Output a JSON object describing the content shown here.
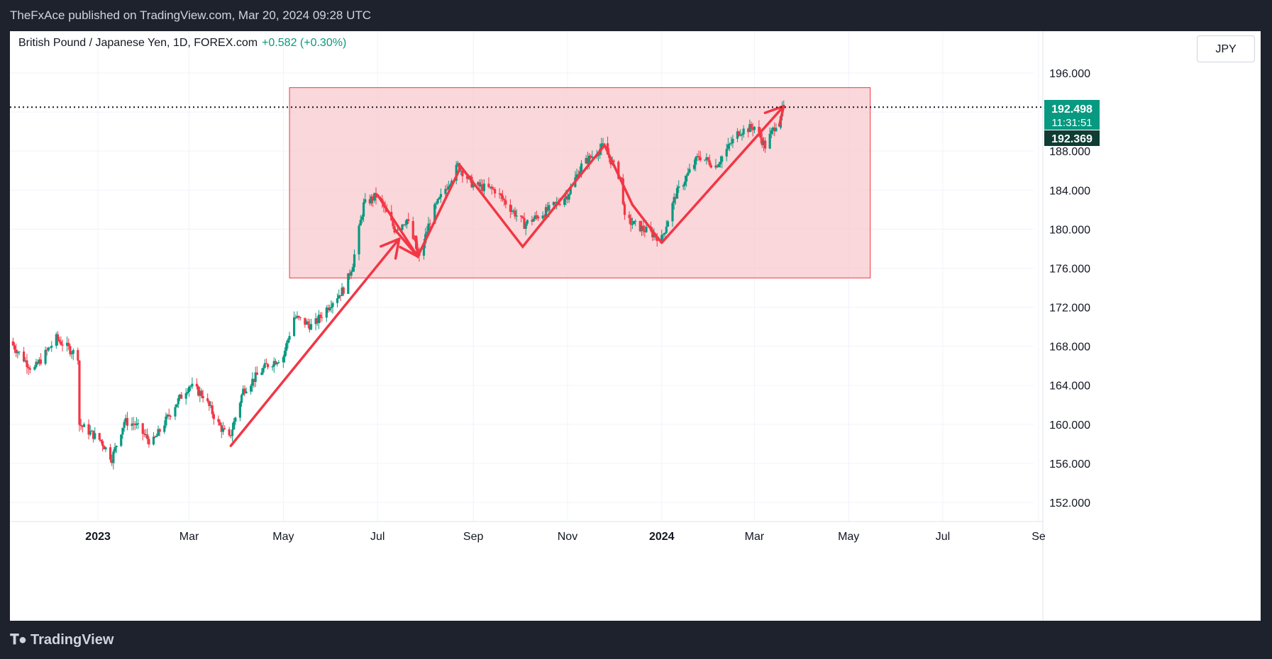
{
  "header": {
    "publisher_line": "TheFxAce published on TradingView.com, Mar 20, 2024 09:28 UTC"
  },
  "symbol_bar": {
    "instrument": "British Pound / Japanese Yen, 1D, FOREX.com",
    "change": "+0.582 (+0.30%)"
  },
  "currency_button": {
    "label": "JPY"
  },
  "price_badges": {
    "last_price": "192.498",
    "countdown": "11:31:51",
    "other_price": "192.369"
  },
  "footer": {
    "brand": "TradingView"
  },
  "chart_data": {
    "type": "candlestick",
    "title": "",
    "y_axis": {
      "range": [
        149,
        197
      ],
      "ticks": [
        152,
        156,
        160,
        164,
        168,
        172,
        176,
        180,
        184,
        188,
        192,
        196
      ],
      "tick_labels": [
        "152.000",
        "156.000",
        "160.000",
        "164.000",
        "168.000",
        "172.000",
        "176.000",
        "180.000",
        "184.000",
        "188.000",
        "192.000",
        "196.000"
      ],
      "position": "right"
    },
    "x_axis": {
      "range": [
        "2022-11-05",
        "2024-09-01"
      ],
      "ticks": [
        {
          "date": "2023-01-01",
          "label": "2023",
          "bold": true
        },
        {
          "date": "2023-03-01",
          "label": "Mar",
          "bold": false
        },
        {
          "date": "2023-05-01",
          "label": "May",
          "bold": false
        },
        {
          "date": "2023-07-01",
          "label": "Jul",
          "bold": false
        },
        {
          "date": "2023-09-01",
          "label": "Sep",
          "bold": false
        },
        {
          "date": "2023-11-01",
          "label": "Nov",
          "bold": false
        },
        {
          "date": "2024-01-01",
          "label": "2024",
          "bold": true
        },
        {
          "date": "2024-03-01",
          "label": "Mar",
          "bold": false
        },
        {
          "date": "2024-05-01",
          "label": "May",
          "bold": false
        },
        {
          "date": "2024-07-01",
          "label": "Jul",
          "bold": false
        },
        {
          "date": "2024-09-01",
          "label": "Se",
          "bold": false
        }
      ]
    },
    "grid": true,
    "colors": {
      "up": "#089981",
      "down": "#f23645",
      "annotation": "#f23645",
      "range_fill": "#f8c9cd",
      "badge_green": "#089981",
      "badge_dark": "#0f3d33"
    },
    "current_price_line": 192.498,
    "price_path": [
      {
        "date": "2022-11-05",
        "price": 168.5
      },
      {
        "date": "2022-11-20",
        "price": 165.5
      },
      {
        "date": "2022-12-05",
        "price": 168.8
      },
      {
        "date": "2022-12-19",
        "price": 167.0
      },
      {
        "date": "2022-12-20",
        "price": 160.0
      },
      {
        "date": "2023-01-03",
        "price": 158.3
      },
      {
        "date": "2023-01-10",
        "price": 156.5
      },
      {
        "date": "2023-01-18",
        "price": 160.3
      },
      {
        "date": "2023-01-25",
        "price": 160.0
      },
      {
        "date": "2023-02-05",
        "price": 158.0
      },
      {
        "date": "2023-02-20",
        "price": 162.0
      },
      {
        "date": "2023-03-01",
        "price": 164.0
      },
      {
        "date": "2023-03-10",
        "price": 163.0
      },
      {
        "date": "2023-03-20",
        "price": 160.0
      },
      {
        "date": "2023-03-27",
        "price": 158.5
      },
      {
        "date": "2023-04-05",
        "price": 163.5
      },
      {
        "date": "2023-04-20",
        "price": 166.0
      },
      {
        "date": "2023-05-01",
        "price": 167.0
      },
      {
        "date": "2023-05-08",
        "price": 171.0
      },
      {
        "date": "2023-05-20",
        "price": 170.0
      },
      {
        "date": "2023-06-01",
        "price": 172.5
      },
      {
        "date": "2023-06-10",
        "price": 174.0
      },
      {
        "date": "2023-06-15",
        "price": 176.5
      },
      {
        "date": "2023-06-22",
        "price": 182.5
      },
      {
        "date": "2023-07-01",
        "price": 183.5
      },
      {
        "date": "2023-07-12",
        "price": 180.0
      },
      {
        "date": "2023-07-20",
        "price": 181.0
      },
      {
        "date": "2023-07-28",
        "price": 177.0
      },
      {
        "date": "2023-08-05",
        "price": 181.5
      },
      {
        "date": "2023-08-22",
        "price": 186.5
      },
      {
        "date": "2023-09-01",
        "price": 184.5
      },
      {
        "date": "2023-09-15",
        "price": 184.0
      },
      {
        "date": "2023-10-04",
        "price": 180.5
      },
      {
        "date": "2023-10-20",
        "price": 182.0
      },
      {
        "date": "2023-11-01",
        "price": 183.5
      },
      {
        "date": "2023-11-10",
        "price": 186.5
      },
      {
        "date": "2023-11-24",
        "price": 188.5
      },
      {
        "date": "2023-12-06",
        "price": 185.0
      },
      {
        "date": "2023-12-08",
        "price": 181.0
      },
      {
        "date": "2023-12-20",
        "price": 180.0
      },
      {
        "date": "2024-01-01",
        "price": 179.0
      },
      {
        "date": "2024-01-10",
        "price": 183.5
      },
      {
        "date": "2024-01-25",
        "price": 187.5
      },
      {
        "date": "2024-02-05",
        "price": 186.5
      },
      {
        "date": "2024-02-20",
        "price": 190.0
      },
      {
        "date": "2024-03-01",
        "price": 190.5
      },
      {
        "date": "2024-03-08",
        "price": 188.5
      },
      {
        "date": "2024-03-20",
        "price": 192.5
      }
    ],
    "annotations": {
      "range_box": {
        "x_start": "2023-05-05",
        "x_end": "2024-05-15",
        "y_low": 175.0,
        "y_high": 194.5
      },
      "zigzag_path": [
        {
          "date": "2023-07-12",
          "price": 180.0
        },
        {
          "date": "2023-07-27",
          "price": 177.2
        },
        {
          "date": "2023-08-24",
          "price": 186.4
        },
        {
          "date": "2023-10-03",
          "price": 178.2
        },
        {
          "date": "2023-11-25",
          "price": 188.6
        },
        {
          "date": "2023-12-13",
          "price": 182.5
        },
        {
          "date": "2024-01-01",
          "price": 178.6
        }
      ],
      "arrows": [
        {
          "from": {
            "date": "2023-03-28",
            "price": 157.8
          },
          "to": {
            "date": "2023-07-15",
            "price": 179.0
          }
        },
        {
          "from": {
            "date": "2024-01-01",
            "price": 178.6
          },
          "to": {
            "date": "2024-03-20",
            "price": 192.6
          }
        },
        {
          "from": {
            "date": "2023-07-01",
            "price": 183.5
          },
          "to": {
            "date": "2023-07-27",
            "price": 177.2
          }
        }
      ]
    }
  }
}
